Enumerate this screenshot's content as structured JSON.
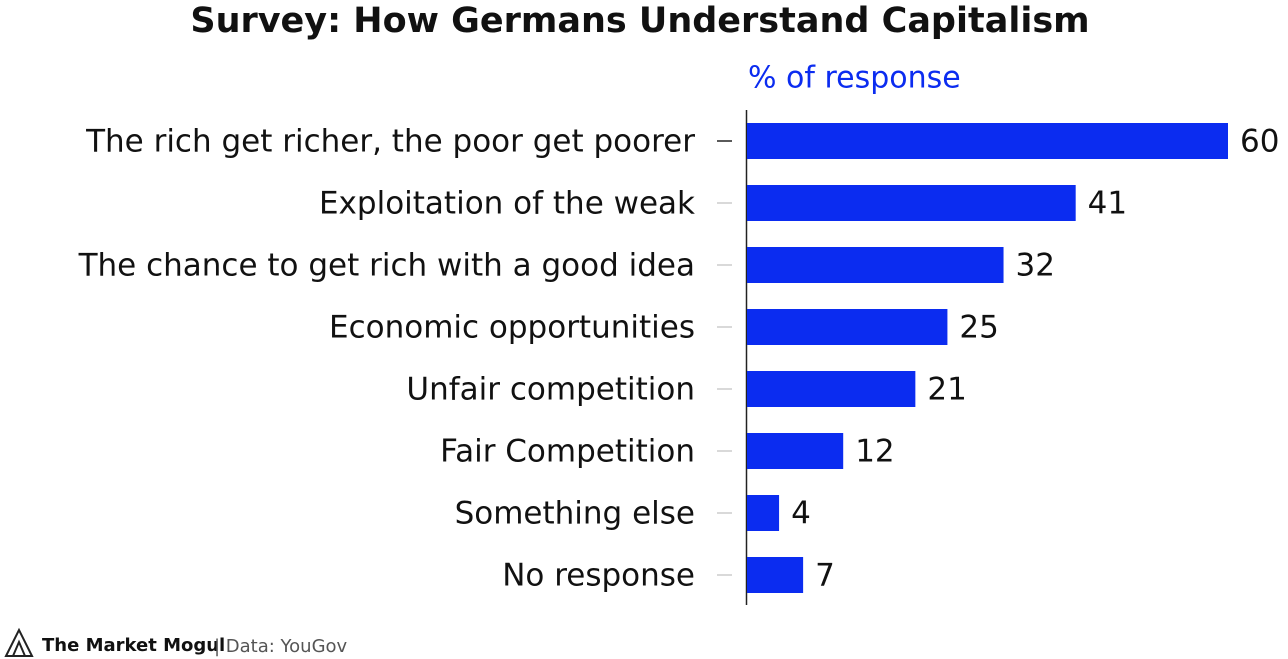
{
  "chart_data": {
    "type": "bar",
    "orientation": "horizontal",
    "title": "Survey: How Germans Understand Capitalism",
    "x_label": "% of response",
    "categories": [
      "The rich get richer, the poor get poorer",
      "Exploitation of the weak",
      "The chance to get rich with a good idea",
      "Economic opportunities",
      "Unfair competition",
      "Fair Competition",
      "Something else",
      "No response"
    ],
    "values": [
      60,
      41,
      32,
      25,
      21,
      12,
      4,
      7
    ],
    "color": "#0b2cf0"
  },
  "footer": {
    "brand": "The Market Mogul",
    "source": "| Data: YouGov"
  }
}
